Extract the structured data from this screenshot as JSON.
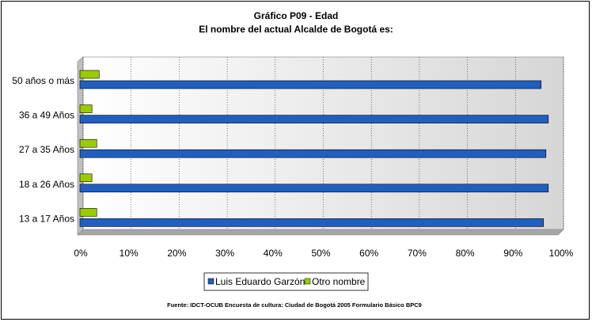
{
  "chart_data": {
    "type": "bar",
    "orientation": "horizontal",
    "title": "Gráfico P09 - Edad",
    "subtitle": "El nombre del actual Alcalde de Bogotá es:",
    "categories": [
      "50 años o más",
      "36 a 49 Años",
      "27 a 35 Años",
      "18 a 26 Años",
      "13 a 17 Años"
    ],
    "series": [
      {
        "name": "Luis Eduardo Garzón",
        "color": "#1f5fc0",
        "values": [
          96,
          97.5,
          97,
          97.5,
          96.5
        ]
      },
      {
        "name": "Otro nombre",
        "color": "#99cc00",
        "values": [
          4,
          2.5,
          3.5,
          2.5,
          3.5
        ]
      }
    ],
    "xlim": [
      0,
      100
    ],
    "xticks": [
      "0%",
      "10%",
      "20%",
      "30%",
      "40%",
      "50%",
      "60%",
      "70%",
      "80%",
      "90%",
      "100%"
    ],
    "xlabel": "",
    "ylabel": "",
    "grid": true,
    "legend_position": "bottom",
    "source": "Fuente: IDCT-OCUB Encuesta de cultura: Ciudad de Bogotá 2005 Formulario Básico  BPC9"
  }
}
